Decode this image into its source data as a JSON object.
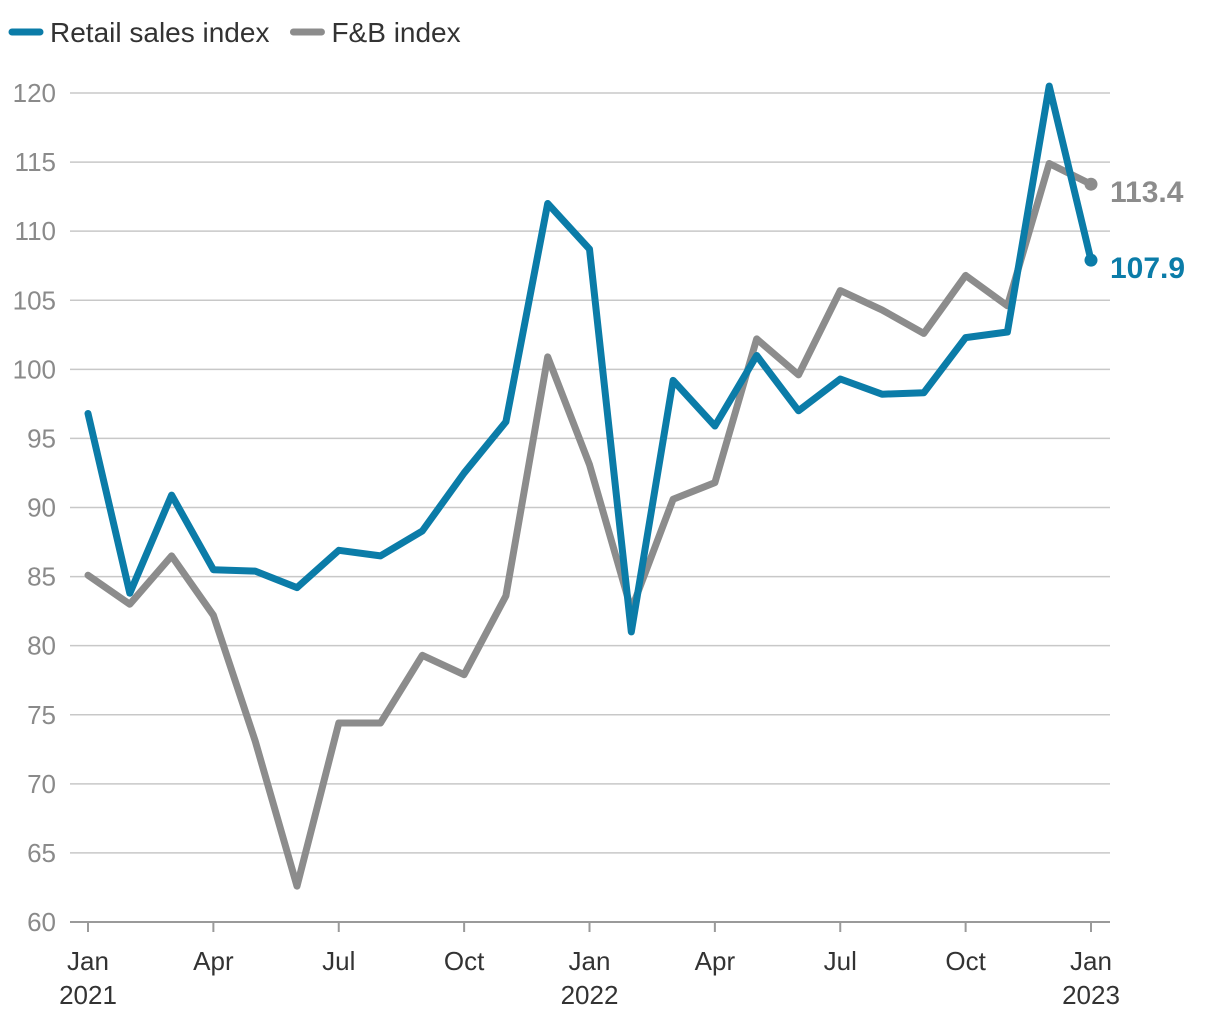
{
  "chart_data": {
    "type": "line",
    "title": "",
    "xlabel": "",
    "ylabel": "",
    "ylim": [
      60,
      120
    ],
    "yticks": [
      60,
      65,
      70,
      75,
      80,
      85,
      90,
      95,
      100,
      105,
      110,
      115,
      120
    ],
    "grid": true,
    "legend_position": "top-left",
    "x": [
      "Jan 2021",
      "Feb 2021",
      "Mar 2021",
      "Apr 2021",
      "May 2021",
      "Jun 2021",
      "Jul 2021",
      "Aug 2021",
      "Sep 2021",
      "Oct 2021",
      "Nov 2021",
      "Dec 2021",
      "Jan 2022",
      "Feb 2022",
      "Mar 2022",
      "Apr 2022",
      "May 2022",
      "Jun 2022",
      "Jul 2022",
      "Aug 2022",
      "Sep 2022",
      "Oct 2022",
      "Nov 2022",
      "Dec 2022",
      "Jan 2023"
    ],
    "x_tick_labels": [
      {
        "index": 0,
        "line1": "Jan",
        "line2": "2021"
      },
      {
        "index": 3,
        "line1": "Apr",
        "line2": ""
      },
      {
        "index": 6,
        "line1": "Jul",
        "line2": ""
      },
      {
        "index": 9,
        "line1": "Oct",
        "line2": ""
      },
      {
        "index": 12,
        "line1": "Jan",
        "line2": "2022"
      },
      {
        "index": 15,
        "line1": "Apr",
        "line2": ""
      },
      {
        "index": 18,
        "line1": "Jul",
        "line2": ""
      },
      {
        "index": 21,
        "line1": "Oct",
        "line2": ""
      },
      {
        "index": 24,
        "line1": "Jan",
        "line2": "2023"
      }
    ],
    "series": [
      {
        "name": "Retail sales index",
        "color": "#0b7ca8",
        "values": [
          96.8,
          83.8,
          90.9,
          85.5,
          85.4,
          84.2,
          86.9,
          86.5,
          88.3,
          92.5,
          96.2,
          112.0,
          108.7,
          81.0,
          99.2,
          95.9,
          101.0,
          97.0,
          99.3,
          98.2,
          98.3,
          102.3,
          102.7,
          120.5,
          107.9
        ],
        "end_label": "107.9"
      },
      {
        "name": "F&B index",
        "color": "#8c8c8c",
        "values": [
          85.1,
          83.0,
          86.5,
          82.2,
          73.1,
          62.6,
          74.4,
          74.4,
          79.3,
          77.9,
          83.6,
          100.9,
          93.1,
          82.6,
          90.6,
          91.8,
          102.2,
          99.6,
          105.7,
          104.3,
          102.6,
          106.8,
          104.6,
          114.9,
          113.4
        ],
        "end_label": "113.4"
      }
    ]
  }
}
